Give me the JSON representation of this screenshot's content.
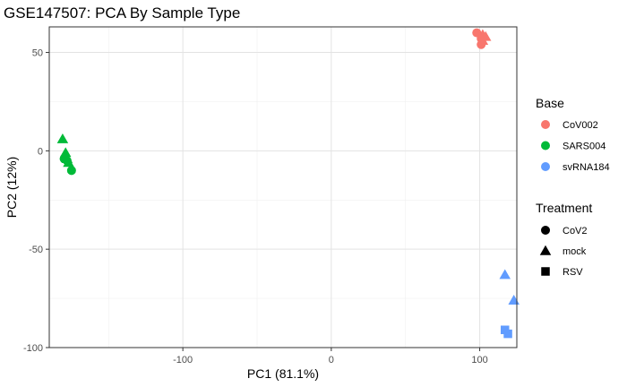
{
  "chart_data": {
    "type": "scatter",
    "title": "GSE147507: PCA By Sample Type",
    "xlabel": "PC1 (81.1%)",
    "ylabel": "PC2 (12%)",
    "xlim": [
      -190,
      125
    ],
    "ylim": [
      -100,
      63
    ],
    "x_ticks": [
      -100,
      0,
      100
    ],
    "x_tick_labels": [
      "-100",
      "0",
      "100"
    ],
    "y_ticks": [
      -100,
      -50,
      0,
      50
    ],
    "y_tick_labels": [
      "-100",
      "-50",
      "0",
      "50"
    ],
    "grid": true,
    "legend": {
      "placement": "right",
      "color_title": "Base",
      "color_items": [
        {
          "label": "CoV002",
          "color": "#F8766D"
        },
        {
          "label": "SARS004",
          "color": "#00BA38"
        },
        {
          "label": "svRNA184",
          "color": "#619CFF"
        }
      ],
      "shape_title": "Treatment",
      "shape_items": [
        {
          "label": "CoV2",
          "shape": "circle"
        },
        {
          "label": "mock",
          "shape": "triangle"
        },
        {
          "label": "RSV",
          "shape": "square"
        }
      ]
    },
    "points": [
      {
        "x": 98,
        "y": 60,
        "base": "CoV002",
        "treatment": "CoV2"
      },
      {
        "x": 101,
        "y": 57,
        "base": "CoV002",
        "treatment": "CoV2"
      },
      {
        "x": 101,
        "y": 54,
        "base": "CoV002",
        "treatment": "CoV2"
      },
      {
        "x": 102,
        "y": 59,
        "base": "CoV002",
        "treatment": "mock"
      },
      {
        "x": 104,
        "y": 58,
        "base": "CoV002",
        "treatment": "mock"
      },
      {
        "x": 102,
        "y": 56,
        "base": "CoV002",
        "treatment": "mock"
      },
      {
        "x": -180,
        "y": -4,
        "base": "SARS004",
        "treatment": "CoV2"
      },
      {
        "x": -178,
        "y": -5,
        "base": "SARS004",
        "treatment": "CoV2"
      },
      {
        "x": -175,
        "y": -10,
        "base": "SARS004",
        "treatment": "CoV2"
      },
      {
        "x": -181,
        "y": 6,
        "base": "SARS004",
        "treatment": "mock"
      },
      {
        "x": -179,
        "y": -1,
        "base": "SARS004",
        "treatment": "mock"
      },
      {
        "x": -178,
        "y": -4,
        "base": "SARS004",
        "treatment": "mock"
      },
      {
        "x": -177,
        "y": -6,
        "base": "SARS004",
        "treatment": "mock"
      },
      {
        "x": 117,
        "y": -63,
        "base": "svRNA184",
        "treatment": "mock"
      },
      {
        "x": 123,
        "y": -76,
        "base": "svRNA184",
        "treatment": "mock"
      },
      {
        "x": 117,
        "y": -91,
        "base": "svRNA184",
        "treatment": "RSV"
      },
      {
        "x": 119,
        "y": -93,
        "base": "svRNA184",
        "treatment": "RSV"
      }
    ]
  }
}
